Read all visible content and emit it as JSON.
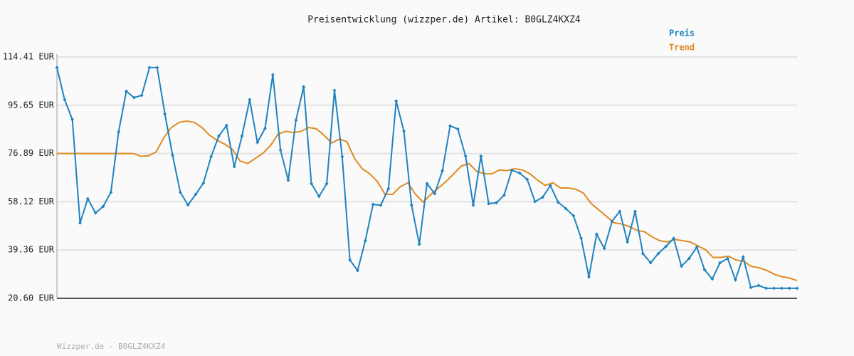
{
  "chart_data": {
    "type": "line",
    "title": "Preisentwicklung (wizzper.de) Artikel: B0GLZ4KXZ4",
    "legend": "top-right",
    "grid": true,
    "ylim": [
      20.6,
      114.41
    ],
    "yticks": [
      {
        "value": 20.6,
        "label": "20.60 EUR"
      },
      {
        "value": 39.36,
        "label": "39.36 EUR"
      },
      {
        "value": 58.12,
        "label": "58.12 EUR"
      },
      {
        "value": 76.89,
        "label": "76.89 EUR"
      },
      {
        "value": 95.65,
        "label": "95.65 EUR"
      },
      {
        "value": 114.41,
        "label": "114.41 EUR"
      }
    ],
    "series": [
      {
        "name": "Preis",
        "color": "#1f83c0",
        "markers": true,
        "values": [
          110.3,
          97.8,
          90.1,
          49.9,
          59.3,
          53.8,
          56.3,
          61.8,
          85.3,
          101.1,
          98.6,
          99.5,
          110.3,
          110.3,
          92.3,
          76.2,
          61.8,
          56.9,
          61.0,
          65.4,
          75.7,
          83.7,
          87.8,
          71.8,
          83.7,
          97.8,
          81.2,
          86.7,
          107.5,
          78.2,
          66.5,
          89.8,
          102.8,
          65.2,
          60.2,
          65.2,
          101.4,
          75.7,
          35.5,
          31.4,
          43.0,
          57.1,
          56.8,
          63.2,
          97.3,
          85.6,
          56.8,
          41.6,
          65.2,
          61.3,
          70.2,
          87.6,
          86.4,
          75.9,
          56.8,
          75.9,
          57.4,
          57.7,
          60.7,
          70.4,
          69.3,
          66.8,
          58.2,
          59.9,
          64.4,
          58.0,
          55.5,
          52.7,
          43.9,
          28.9,
          45.5,
          40.0,
          50.5,
          54.4,
          42.5,
          54.4,
          38.0,
          34.4,
          38.0,
          40.8,
          43.9,
          33.1,
          36.1,
          40.5,
          31.7,
          28.1,
          34.4,
          36.1,
          27.8,
          36.7,
          24.8,
          25.6,
          24.5,
          24.5,
          24.5,
          24.5,
          24.5
        ]
      },
      {
        "name": "Trend",
        "color": "#e08a20",
        "markers": false,
        "values": [
          76.89,
          76.89,
          76.89,
          76.89,
          76.89,
          76.89,
          76.89,
          76.89,
          76.89,
          76.89,
          76.89,
          75.8,
          76.0,
          77.5,
          83.0,
          87.0,
          89.0,
          89.5,
          89.0,
          87.0,
          84.0,
          82.0,
          80.5,
          78.5,
          74.0,
          73.0,
          75.0,
          77.0,
          80.0,
          84.5,
          85.5,
          85.0,
          85.5,
          87.0,
          86.5,
          84.0,
          81.0,
          82.5,
          81.5,
          75.0,
          71.0,
          69.0,
          66.0,
          61.0,
          61.0,
          64.0,
          65.5,
          61.0,
          58.0,
          61.0,
          63.5,
          66.0,
          69.0,
          72.0,
          73.0,
          70.0,
          69.0,
          69.0,
          70.5,
          70.2,
          71.0,
          70.5,
          69.0,
          66.5,
          64.5,
          65.5,
          63.5,
          63.5,
          63.0,
          61.5,
          57.5,
          55.0,
          52.5,
          50.0,
          49.5,
          48.5,
          47.0,
          46.5,
          44.5,
          43.0,
          42.5,
          43.5,
          43.0,
          42.5,
          41.0,
          39.5,
          36.5,
          36.5,
          37.0,
          35.5,
          35.0,
          33.0,
          32.5,
          31.5,
          30.0,
          29.0,
          28.5,
          27.5
        ]
      }
    ]
  },
  "footer": "Wizzper.de - B0GLZ4KXZ4"
}
